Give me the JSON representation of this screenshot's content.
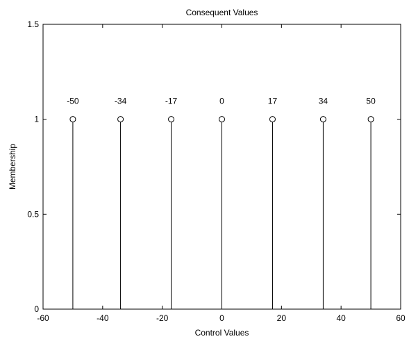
{
  "chart_data": {
    "type": "stem",
    "title": "Consequent Values",
    "xlabel": "Control Values",
    "ylabel": "Membership",
    "xlim": [
      -60,
      60
    ],
    "ylim": [
      0,
      1.5
    ],
    "xticks": [
      "-60",
      "-40",
      "-20",
      "0",
      "20",
      "40",
      "60"
    ],
    "yticks": [
      "0",
      "0.5",
      "1",
      "1.5"
    ],
    "grid": false,
    "x": [
      -50,
      -34,
      -17,
      0,
      17,
      34,
      50
    ],
    "values": [
      1,
      1,
      1,
      1,
      1,
      1,
      1
    ],
    "point_labels": [
      "-50",
      "-34",
      "-17",
      "0",
      "17",
      "34",
      "50"
    ],
    "colors": {
      "stem": "#000000",
      "axis": "#000000",
      "background": "#ffffff"
    }
  }
}
